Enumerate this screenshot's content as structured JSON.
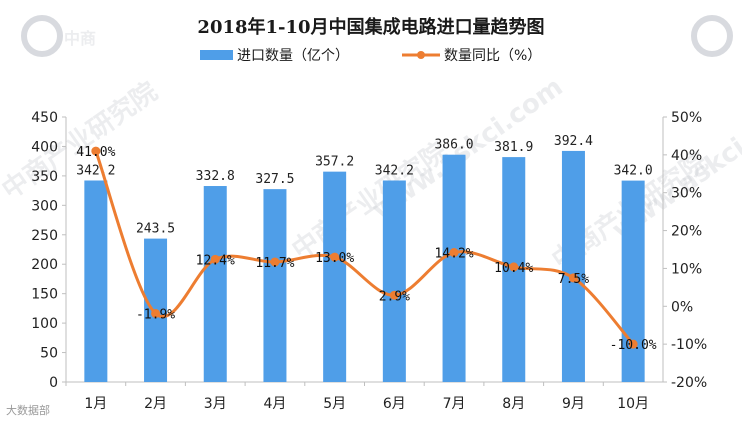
{
  "chart_data": {
    "type": "bar",
    "title": "2018年1-10月中国集成电路进口量趋势图",
    "categories": [
      "1月",
      "2月",
      "3月",
      "4月",
      "5月",
      "6月",
      "7月",
      "8月",
      "9月",
      "10月"
    ],
    "series": [
      {
        "name": "进口数量（亿个）",
        "kind": "bar",
        "axis": "left",
        "color": "#4f9ee8",
        "values": [
          342.2,
          243.5,
          332.8,
          327.5,
          357.2,
          342.2,
          386.0,
          381.9,
          392.4,
          342.0
        ],
        "labels": [
          "342.2",
          "243.5",
          "332.8",
          "327.5",
          "357.2",
          "342.2",
          "386.0",
          "381.9",
          "392.4",
          "342.0"
        ]
      },
      {
        "name": "数量同比（%）",
        "kind": "line",
        "axis": "right",
        "color": "#ed7d31",
        "values": [
          41.0,
          -1.9,
          12.4,
          11.7,
          13.0,
          2.9,
          14.2,
          10.4,
          7.5,
          -10.0
        ],
        "labels": [
          "41.0%",
          "-1.9%",
          "12.4%",
          "11.7%",
          "13.0%",
          "2.9%",
          "14.2%",
          "10.4%",
          "7.5%",
          "-10.0%"
        ]
      }
    ],
    "y_left": {
      "min": 0,
      "max": 450,
      "step": 50,
      "ticks": [
        "0",
        "50",
        "100",
        "150",
        "200",
        "250",
        "300",
        "350",
        "400",
        "450"
      ]
    },
    "y_right": {
      "min": -20,
      "max": 50,
      "step": 10,
      "ticks": [
        "-20%",
        "-10%",
        "0%",
        "10%",
        "20%",
        "30%",
        "40%",
        "50%"
      ]
    },
    "legend_position": "top-center",
    "grid": false
  },
  "watermark": {
    "text": "中商产业研究院",
    "site": "www.askci.com",
    "logo_text": "中商"
  },
  "source_mark": "大数据部"
}
